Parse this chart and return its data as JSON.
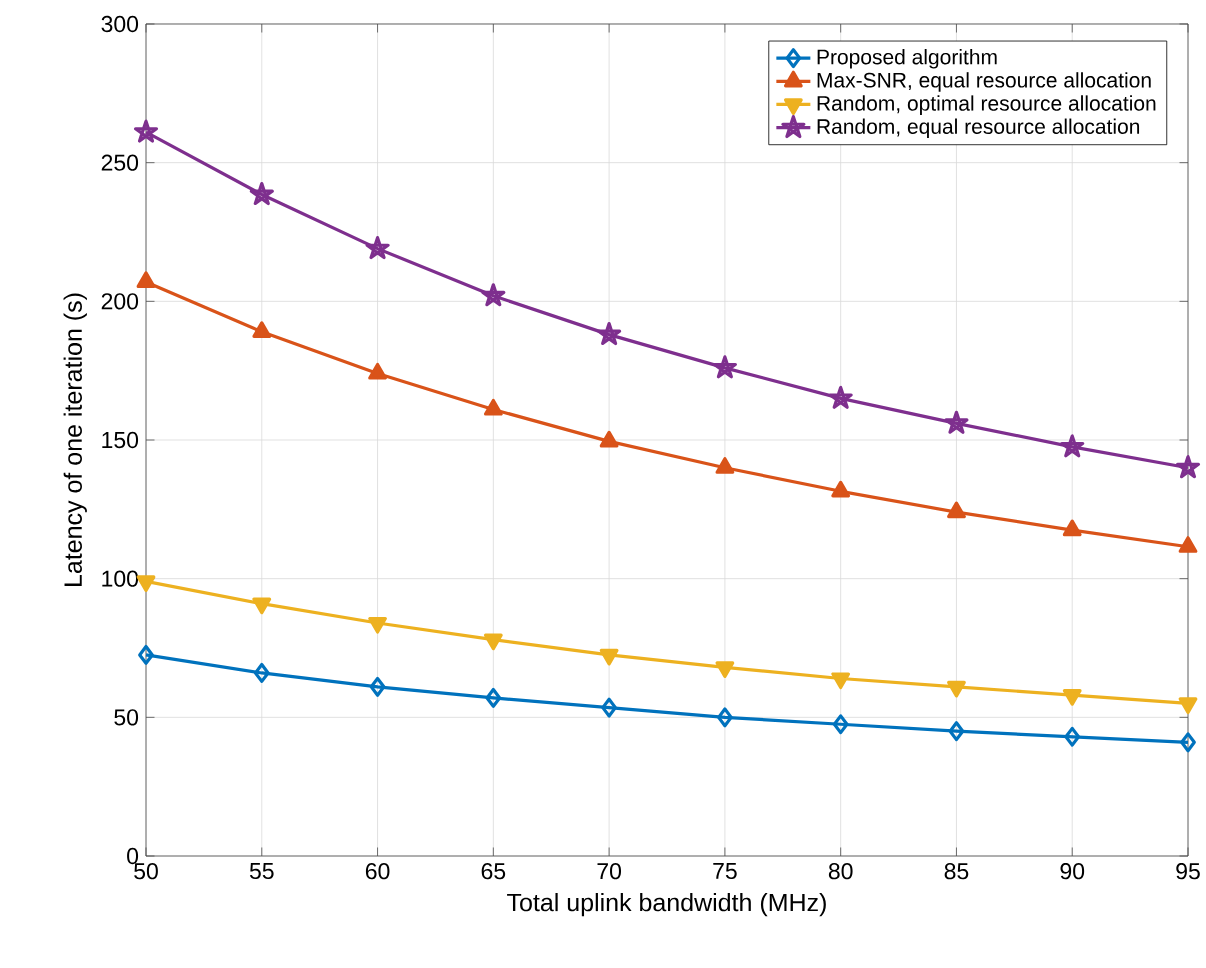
{
  "chart_data": {
    "type": "line",
    "xlabel": "Total uplink bandwidth (MHz)",
    "ylabel": "Latency of one iteration (s)",
    "x": [
      50,
      55,
      60,
      65,
      70,
      75,
      80,
      85,
      90,
      95
    ],
    "xlim": [
      50,
      95
    ],
    "xticks": [
      50,
      55,
      60,
      65,
      70,
      75,
      80,
      85,
      90,
      95
    ],
    "ylim": [
      0,
      300
    ],
    "yticks": [
      0,
      50,
      100,
      150,
      200,
      250,
      300
    ],
    "grid": true,
    "legend": "top right",
    "line_style": "solid",
    "series": [
      {
        "name": "Proposed algorithm",
        "color": "#0072bd",
        "marker": "diamond",
        "values": [
          72.5,
          66,
          61,
          57,
          53.5,
          50,
          47.5,
          45,
          43,
          41
        ]
      },
      {
        "name": "Max-SNR, equal resource allocation",
        "color": "#d95319",
        "marker": "triangle",
        "values": [
          207,
          189,
          174,
          161,
          149.5,
          140,
          131.5,
          124,
          117.5,
          111.5
        ]
      },
      {
        "name": "Random, optimal resource allocation",
        "color": "#edb120",
        "marker": "triangle down",
        "values": [
          99,
          91,
          84,
          78,
          72.5,
          68,
          64,
          61,
          58,
          55
        ]
      },
      {
        "name": "Random, equal resource allocation",
        "color": "#7e2f8e",
        "marker": "star",
        "values": [
          261,
          238.5,
          219,
          202,
          188,
          176,
          165,
          156,
          147.5,
          140
        ]
      }
    ]
  }
}
